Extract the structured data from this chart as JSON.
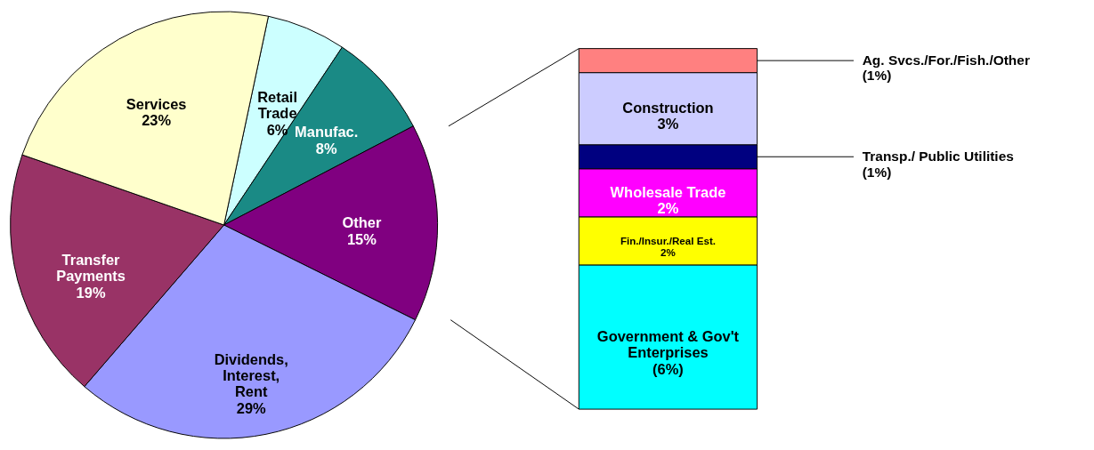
{
  "chart_data": [
    {
      "type": "pie",
      "categories": [
        "Retail Trade",
        "Manufac.",
        "Other",
        "Dividends, Interest, Rent",
        "Transfer Payments",
        "Services"
      ],
      "values": [
        6,
        8,
        15,
        29,
        19,
        23
      ],
      "colors": [
        "#ccffff",
        "#1a8a85",
        "#800080",
        "#9999ff",
        "#993366",
        "#ffffcc"
      ],
      "value_labels": [
        "6%",
        "8%",
        "15%",
        "29%",
        "19%",
        "23%"
      ]
    },
    {
      "type": "bar",
      "stacked": true,
      "categories": [
        null
      ],
      "tick_labels": false,
      "series": [
        {
          "name": "Government & Gov't Enterprises",
          "color": "#00ffff",
          "values": [
            6
          ],
          "value_labels": [
            "(6%)"
          ]
        },
        {
          "name": "Fin./Insur./Real Est.",
          "color": "#ffff00",
          "values": [
            2
          ],
          "value_labels": [
            "2%"
          ]
        },
        {
          "name": "Wholesale Trade",
          "color": "#ff00ff",
          "values": [
            2
          ],
          "value_labels": [
            "2%"
          ]
        },
        {
          "name": "Transp./ Public Utilities",
          "color": "#000080",
          "values": [
            1
          ],
          "value_labels": [
            "(1%)"
          ]
        },
        {
          "name": "Construction",
          "color": "#ccccff",
          "values": [
            3
          ],
          "value_labels": [
            "3%"
          ]
        },
        {
          "name": "Ag. Svcs./For./Fish./Other",
          "color": "#ff8080",
          "values": [
            1
          ],
          "value_labels": [
            "(1%)"
          ]
        }
      ]
    }
  ]
}
